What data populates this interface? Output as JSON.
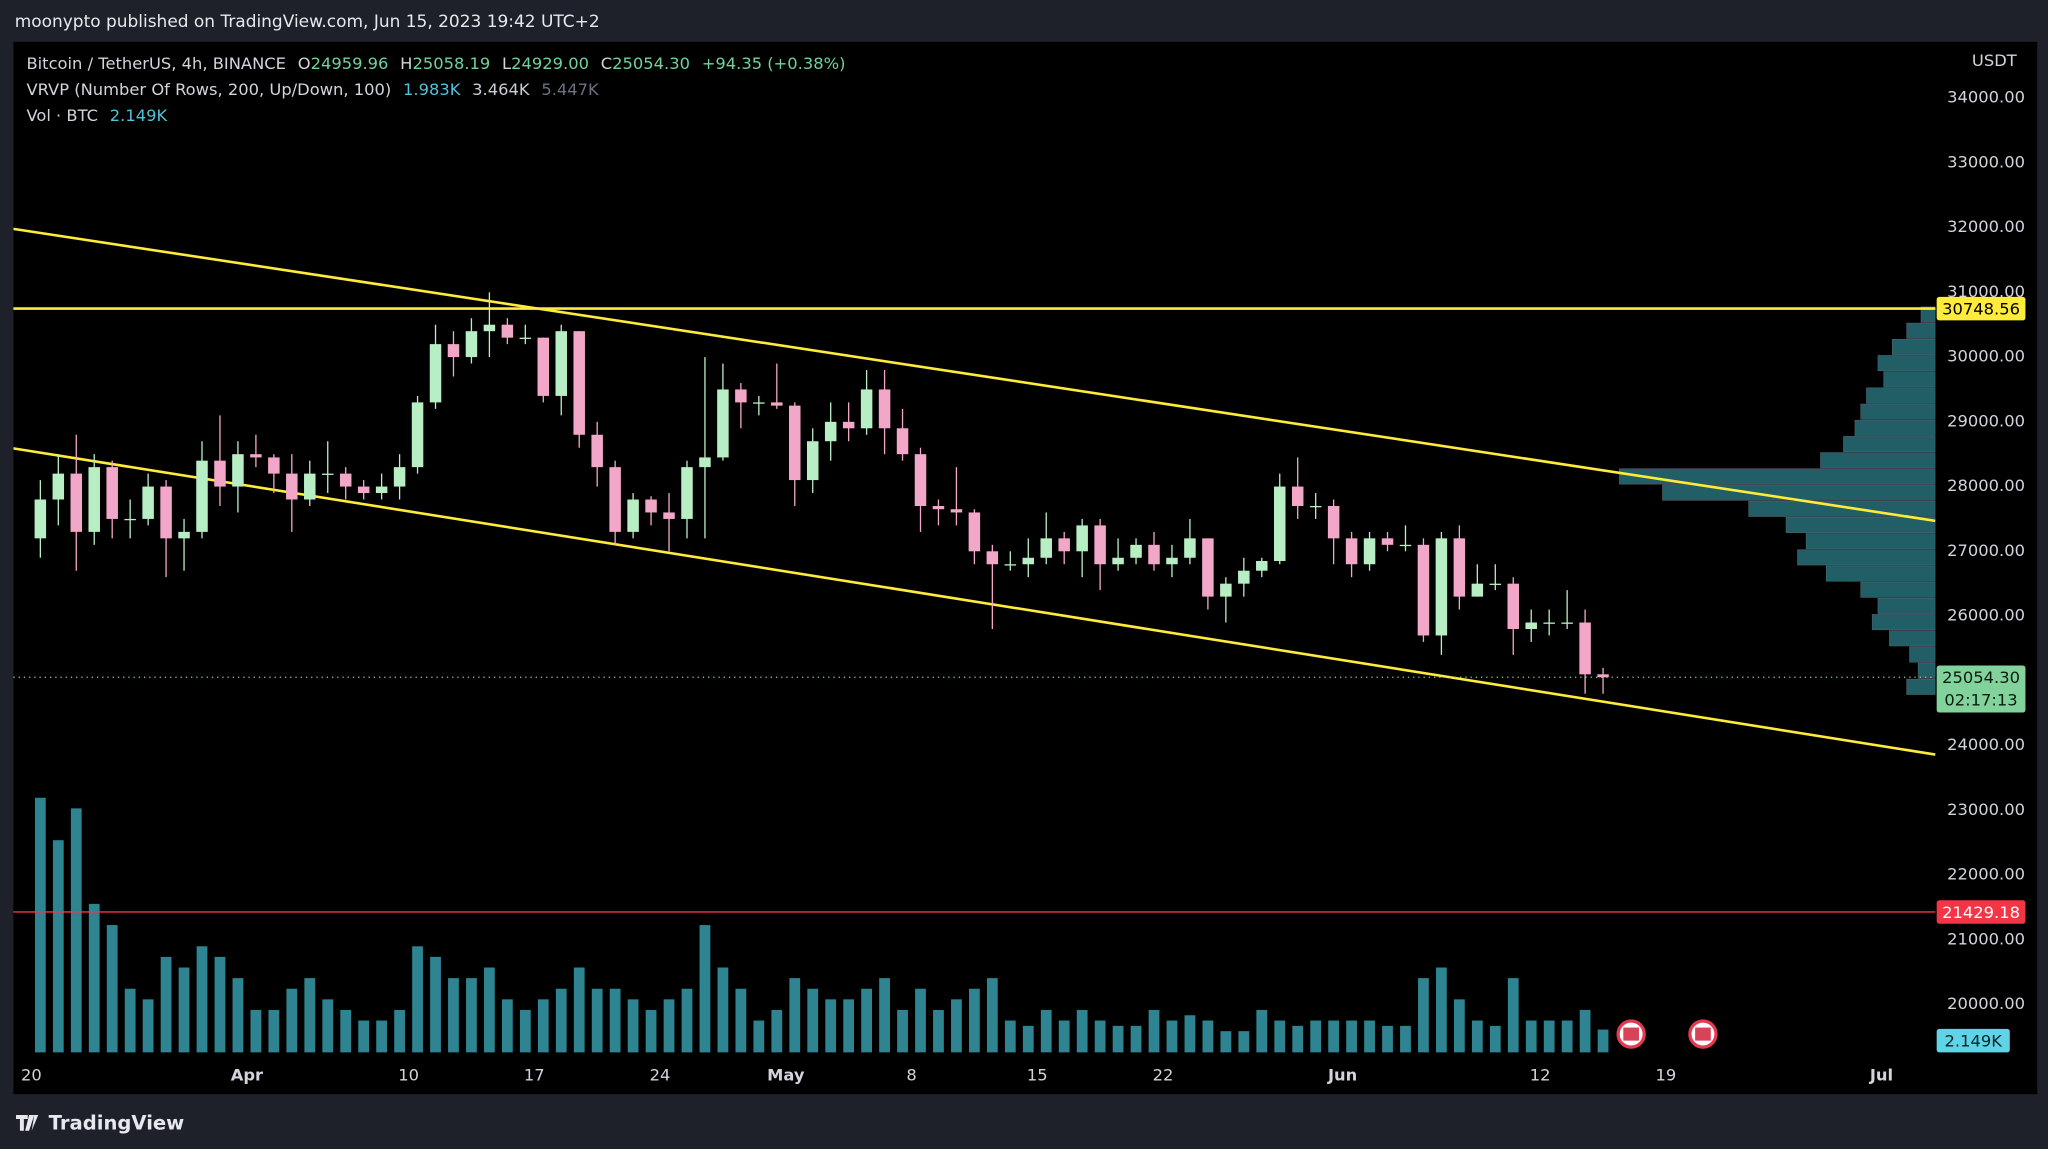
{
  "header": {
    "title": "moonypto published on TradingView.com, Jun 15, 2023 19:42 UTC+2"
  },
  "chart_data": {
    "type": "candlestick",
    "legend": {
      "symbol": "Bitcoin / TetherUS, 4h, BINANCE",
      "ohlc": [
        {
          "label": "O",
          "value": "24959.96"
        },
        {
          "label": "H",
          "value": "25058.19"
        },
        {
          "label": "L",
          "value": "24929.00"
        },
        {
          "label": "C",
          "value": "25054.30"
        }
      ],
      "change": "+94.35 (+0.38%)"
    },
    "indicators": [
      {
        "name": "VRVP (Number Of Rows, 200, Up/Down, 100)",
        "values": [
          "1.983K",
          "3.464K",
          "5.447K"
        ]
      },
      {
        "name": "Vol · BTC",
        "values": [
          "2.149K"
        ]
      }
    ],
    "y_axis_label": "USDT",
    "ylim": [
      19220,
      34870
    ],
    "yticks": [
      {
        "value": 34000,
        "label": "34000.00"
      },
      {
        "value": 33000,
        "label": "33000.00"
      },
      {
        "value": 32000,
        "label": "32000.00"
      },
      {
        "value": 31000,
        "label": "31000.00"
      },
      {
        "value": 30000,
        "label": "30000.00"
      },
      {
        "value": 29000,
        "label": "29000.00"
      },
      {
        "value": 28000,
        "label": "28000.00"
      },
      {
        "value": 27000,
        "label": "27000.00"
      },
      {
        "value": 26000,
        "label": "26000.00"
      },
      {
        "value": 25000,
        "label": "25000.00"
      },
      {
        "value": 24000,
        "label": "24000.00"
      },
      {
        "value": 23000,
        "label": "23000.00"
      },
      {
        "value": 22000,
        "label": "22000.00"
      },
      {
        "value": 21000,
        "label": "21000.00"
      },
      {
        "value": 20000,
        "label": "20000.00"
      }
    ],
    "xlim": [
      "03-19",
      "07-04"
    ],
    "xticks": [
      {
        "value": "03-20",
        "label": "20"
      },
      {
        "value": "04-01",
        "label": "Apr"
      },
      {
        "value": "04-10",
        "label": "10"
      },
      {
        "value": "04-17",
        "label": "17"
      },
      {
        "value": "04-24",
        "label": "24"
      },
      {
        "value": "05-01",
        "label": "May"
      },
      {
        "value": "05-08",
        "label": "8"
      },
      {
        "value": "05-15",
        "label": "15"
      },
      {
        "value": "05-22",
        "label": "22"
      },
      {
        "value": "06-01",
        "label": "Jun"
      },
      {
        "value": "06-12",
        "label": "12"
      },
      {
        "value": "06-19",
        "label": "19"
      },
      {
        "value": "07-01",
        "label": "Jul"
      }
    ],
    "grid": false,
    "colors": {
      "up": "#b8eec4",
      "down": "#f2a7c8"
    },
    "candles": [
      {
        "date": "03-20",
        "o": 27200,
        "h": 28100,
        "l": 26900,
        "c": 27800
      },
      {
        "date": "03-21",
        "o": 27800,
        "h": 28500,
        "l": 27400,
        "c": 28200
      },
      {
        "date": "03-22",
        "o": 28200,
        "h": 28800,
        "l": 26700,
        "c": 27300
      },
      {
        "date": "03-23",
        "o": 27300,
        "h": 28500,
        "l": 27100,
        "c": 28300
      },
      {
        "date": "03-24",
        "o": 28300,
        "h": 28400,
        "l": 27200,
        "c": 27500
      },
      {
        "date": "03-25",
        "o": 27500,
        "h": 27800,
        "l": 27200,
        "c": 27500
      },
      {
        "date": "03-26",
        "o": 27500,
        "h": 28200,
        "l": 27400,
        "c": 28000
      },
      {
        "date": "03-27",
        "o": 28000,
        "h": 28100,
        "l": 26600,
        "c": 27200
      },
      {
        "date": "03-28",
        "o": 27200,
        "h": 27500,
        "l": 26700,
        "c": 27300
      },
      {
        "date": "03-29",
        "o": 27300,
        "h": 28700,
        "l": 27200,
        "c": 28400
      },
      {
        "date": "03-30",
        "o": 28400,
        "h": 29100,
        "l": 27700,
        "c": 28000
      },
      {
        "date": "03-31",
        "o": 28000,
        "h": 28700,
        "l": 27600,
        "c": 28500
      },
      {
        "date": "04-01",
        "o": 28500,
        "h": 28800,
        "l": 28300,
        "c": 28450
      },
      {
        "date": "04-02",
        "o": 28450,
        "h": 28500,
        "l": 27900,
        "c": 28200
      },
      {
        "date": "04-03",
        "o": 28200,
        "h": 28500,
        "l": 27300,
        "c": 27800
      },
      {
        "date": "04-04",
        "o": 27800,
        "h": 28400,
        "l": 27700,
        "c": 28200
      },
      {
        "date": "04-05",
        "o": 28200,
        "h": 28700,
        "l": 27900,
        "c": 28200
      },
      {
        "date": "04-06",
        "o": 28200,
        "h": 28300,
        "l": 27800,
        "c": 28000
      },
      {
        "date": "04-07",
        "o": 28000,
        "h": 28100,
        "l": 27800,
        "c": 27900
      },
      {
        "date": "04-08",
        "o": 27900,
        "h": 28200,
        "l": 27800,
        "c": 28000
      },
      {
        "date": "04-09",
        "o": 28000,
        "h": 28500,
        "l": 27800,
        "c": 28300
      },
      {
        "date": "04-10",
        "o": 28300,
        "h": 29400,
        "l": 28200,
        "c": 29300
      },
      {
        "date": "04-11",
        "o": 29300,
        "h": 30500,
        "l": 29200,
        "c": 30200
      },
      {
        "date": "04-12",
        "o": 30200,
        "h": 30400,
        "l": 29700,
        "c": 30000
      },
      {
        "date": "04-13",
        "o": 30000,
        "h": 30600,
        "l": 29900,
        "c": 30400
      },
      {
        "date": "04-14",
        "o": 30400,
        "h": 31000,
        "l": 30000,
        "c": 30500
      },
      {
        "date": "04-15",
        "o": 30500,
        "h": 30600,
        "l": 30200,
        "c": 30300
      },
      {
        "date": "04-16",
        "o": 30300,
        "h": 30500,
        "l": 30200,
        "c": 30300
      },
      {
        "date": "04-17",
        "o": 30300,
        "h": 30300,
        "l": 29300,
        "c": 29400
      },
      {
        "date": "04-18",
        "o": 29400,
        "h": 30500,
        "l": 29100,
        "c": 30400
      },
      {
        "date": "04-19",
        "o": 30400,
        "h": 30400,
        "l": 28600,
        "c": 28800
      },
      {
        "date": "04-20",
        "o": 28800,
        "h": 29000,
        "l": 28000,
        "c": 28300
      },
      {
        "date": "04-21",
        "o": 28300,
        "h": 28400,
        "l": 27100,
        "c": 27300
      },
      {
        "date": "04-22",
        "o": 27300,
        "h": 27900,
        "l": 27200,
        "c": 27800
      },
      {
        "date": "04-23",
        "o": 27800,
        "h": 27850,
        "l": 27400,
        "c": 27600
      },
      {
        "date": "04-24",
        "o": 27600,
        "h": 27900,
        "l": 27000,
        "c": 27500
      },
      {
        "date": "04-25",
        "o": 27500,
        "h": 28400,
        "l": 27200,
        "c": 28300
      },
      {
        "date": "04-26",
        "o": 28300,
        "h": 30000,
        "l": 27200,
        "c": 28450
      },
      {
        "date": "04-27",
        "o": 28450,
        "h": 29900,
        "l": 28400,
        "c": 29500
      },
      {
        "date": "04-28",
        "o": 29500,
        "h": 29600,
        "l": 28900,
        "c": 29300
      },
      {
        "date": "04-29",
        "o": 29300,
        "h": 29400,
        "l": 29100,
        "c": 29300
      },
      {
        "date": "04-30",
        "o": 29300,
        "h": 29900,
        "l": 29200,
        "c": 29250
      },
      {
        "date": "05-01",
        "o": 29250,
        "h": 29300,
        "l": 27700,
        "c": 28100
      },
      {
        "date": "05-02",
        "o": 28100,
        "h": 28900,
        "l": 27900,
        "c": 28700
      },
      {
        "date": "05-03",
        "o": 28700,
        "h": 29300,
        "l": 28400,
        "c": 29000
      },
      {
        "date": "05-04",
        "o": 29000,
        "h": 29300,
        "l": 28700,
        "c": 28900
      },
      {
        "date": "05-05",
        "o": 28900,
        "h": 29800,
        "l": 28800,
        "c": 29500
      },
      {
        "date": "05-06",
        "o": 29500,
        "h": 29800,
        "l": 28500,
        "c": 28900
      },
      {
        "date": "05-07",
        "o": 28900,
        "h": 29200,
        "l": 28400,
        "c": 28500
      },
      {
        "date": "05-08",
        "o": 28500,
        "h": 28600,
        "l": 27300,
        "c": 27700
      },
      {
        "date": "05-09",
        "o": 27700,
        "h": 27800,
        "l": 27400,
        "c": 27650
      },
      {
        "date": "05-10",
        "o": 27650,
        "h": 28300,
        "l": 27400,
        "c": 27600
      },
      {
        "date": "05-11",
        "o": 27600,
        "h": 27650,
        "l": 26800,
        "c": 27000
      },
      {
        "date": "05-12",
        "o": 27000,
        "h": 27100,
        "l": 25800,
        "c": 26800
      },
      {
        "date": "05-13",
        "o": 26800,
        "h": 27000,
        "l": 26700,
        "c": 26800
      },
      {
        "date": "05-14",
        "o": 26800,
        "h": 27200,
        "l": 26600,
        "c": 26900
      },
      {
        "date": "05-15",
        "o": 26900,
        "h": 27600,
        "l": 26800,
        "c": 27200
      },
      {
        "date": "05-16",
        "o": 27200,
        "h": 27300,
        "l": 26800,
        "c": 27000
      },
      {
        "date": "05-17",
        "o": 27000,
        "h": 27500,
        "l": 26600,
        "c": 27400
      },
      {
        "date": "05-18",
        "o": 27400,
        "h": 27500,
        "l": 26400,
        "c": 26800
      },
      {
        "date": "05-19",
        "o": 26800,
        "h": 27200,
        "l": 26700,
        "c": 26900
      },
      {
        "date": "05-20",
        "o": 26900,
        "h": 27200,
        "l": 26800,
        "c": 27100
      },
      {
        "date": "05-21",
        "o": 27100,
        "h": 27300,
        "l": 26700,
        "c": 26800
      },
      {
        "date": "05-22",
        "o": 26800,
        "h": 27100,
        "l": 26600,
        "c": 26900
      },
      {
        "date": "05-23",
        "o": 26900,
        "h": 27500,
        "l": 26800,
        "c": 27200
      },
      {
        "date": "05-24",
        "o": 27200,
        "h": 27200,
        "l": 26100,
        "c": 26300
      },
      {
        "date": "05-25",
        "o": 26300,
        "h": 26600,
        "l": 25900,
        "c": 26500
      },
      {
        "date": "05-26",
        "o": 26500,
        "h": 26900,
        "l": 26300,
        "c": 26700
      },
      {
        "date": "05-27",
        "o": 26700,
        "h": 26900,
        "l": 26600,
        "c": 26850
      },
      {
        "date": "05-28",
        "o": 26850,
        "h": 28200,
        "l": 26800,
        "c": 28000
      },
      {
        "date": "05-29",
        "o": 28000,
        "h": 28450,
        "l": 27500,
        "c": 27700
      },
      {
        "date": "05-30",
        "o": 27700,
        "h": 27900,
        "l": 27500,
        "c": 27700
      },
      {
        "date": "05-31",
        "o": 27700,
        "h": 27800,
        "l": 26800,
        "c": 27200
      },
      {
        "date": "06-01",
        "o": 27200,
        "h": 27300,
        "l": 26600,
        "c": 26800
      },
      {
        "date": "06-02",
        "o": 26800,
        "h": 27300,
        "l": 26700,
        "c": 27200
      },
      {
        "date": "06-03",
        "o": 27200,
        "h": 27300,
        "l": 27000,
        "c": 27100
      },
      {
        "date": "06-04",
        "o": 27100,
        "h": 27400,
        "l": 27000,
        "c": 27100
      },
      {
        "date": "06-05",
        "o": 27100,
        "h": 27200,
        "l": 25600,
        "c": 25700
      },
      {
        "date": "06-06",
        "o": 25700,
        "h": 27300,
        "l": 25400,
        "c": 27200
      },
      {
        "date": "06-07",
        "o": 27200,
        "h": 27400,
        "l": 26100,
        "c": 26300
      },
      {
        "date": "06-08",
        "o": 26300,
        "h": 26800,
        "l": 26300,
        "c": 26500
      },
      {
        "date": "06-09",
        "o": 26500,
        "h": 26800,
        "l": 26400,
        "c": 26500
      },
      {
        "date": "06-10",
        "o": 26500,
        "h": 26600,
        "l": 25400,
        "c": 25800
      },
      {
        "date": "06-11",
        "o": 25800,
        "h": 26100,
        "l": 25600,
        "c": 25900
      },
      {
        "date": "06-12",
        "o": 25900,
        "h": 26100,
        "l": 25700,
        "c": 25900
      },
      {
        "date": "06-13",
        "o": 25900,
        "h": 26400,
        "l": 25800,
        "c": 25900
      },
      {
        "date": "06-14",
        "o": 25900,
        "h": 26100,
        "l": 24800,
        "c": 25100
      },
      {
        "date": "06-15",
        "o": 25100,
        "h": 25200,
        "l": 24800,
        "c": 25054.3
      }
    ],
    "volume": {
      "color": "#3aa6b5",
      "label": "2.149K",
      "values": [
        24000,
        20000,
        23000,
        14000,
        12000,
        6000,
        5000,
        9000,
        8000,
        10000,
        9000,
        7000,
        4000,
        4000,
        6000,
        7000,
        5000,
        4000,
        3000,
        3000,
        4000,
        10000,
        9000,
        7000,
        7000,
        8000,
        5000,
        4000,
        5000,
        6000,
        8000,
        6000,
        6000,
        5000,
        4000,
        5000,
        6000,
        12000,
        8000,
        6000,
        3000,
        4000,
        7000,
        6000,
        5000,
        5000,
        6000,
        7000,
        4000,
        6000,
        4000,
        5000,
        6000,
        7000,
        3000,
        2500,
        4000,
        3000,
        4000,
        3000,
        2500,
        2500,
        4000,
        3000,
        3500,
        3000,
        2000,
        2000,
        4000,
        3000,
        2500,
        3000,
        3000,
        3000,
        3000,
        2500,
        2500,
        7000,
        8000,
        5000,
        3000,
        2500,
        7000,
        3000,
        3000,
        3000,
        4000,
        2149
      ]
    },
    "volume_profile": {
      "color": "#2c7d88",
      "prices": [
        24900,
        25150,
        25400,
        25650,
        25900,
        26150,
        26400,
        26650,
        26900,
        27150,
        27400,
        27650,
        27900,
        28150,
        28400,
        28650,
        28900,
        29150,
        29400,
        29650,
        29900,
        30150,
        30400,
        30650
      ],
      "values": [
        1000,
        600,
        900,
        1600,
        2200,
        2000,
        2600,
        3800,
        4800,
        4500,
        5200,
        6500,
        9500,
        11000,
        4000,
        3200,
        2800,
        2600,
        2400,
        1800,
        2000,
        1500,
        1000,
        500
      ]
    },
    "lines": [
      {
        "price": {
          "value": 30748.56,
          "label": "30748.56"
        },
        "color": "#ffeb3b",
        "text_color": "#000000"
      },
      {
        "price": {
          "value": 21429.18,
          "label": "21429.18"
        },
        "color": "#f23645",
        "text_color": "#ffffff"
      }
    ],
    "trendlines": [
      {
        "from": {
          "date": "03-19",
          "price": 31980
        },
        "to": {
          "date": "07-04",
          "price": 27470
        },
        "color": "#ffeb3b"
      },
      {
        "from": {
          "date": "03-19",
          "price": 28590
        },
        "to": {
          "date": "07-04",
          "price": 23860
        },
        "color": "#ffeb3b"
      }
    ],
    "last_price": {
      "price": {
        "value": 25054.3,
        "label": "25054.30"
      },
      "countdown": "02:17:13",
      "color": "#81d39b"
    }
  },
  "footer": {
    "brand": "TradingView"
  }
}
